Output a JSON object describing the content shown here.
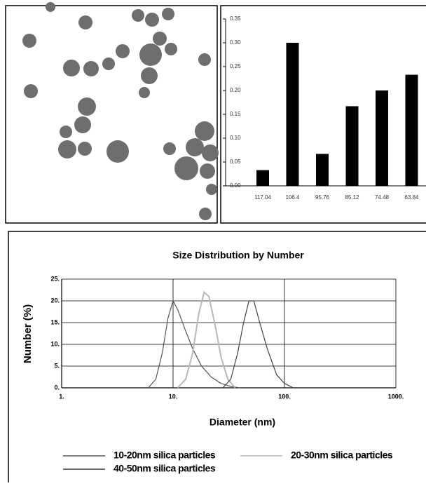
{
  "chart_data": [
    {
      "type": "bar",
      "categories": [
        "117.04",
        "106.4",
        "95.76",
        "85.12",
        "74.48",
        "63.84"
      ],
      "values": [
        0.033,
        0.3,
        0.067,
        0.167,
        0.2,
        0.233
      ],
      "color": "#000000",
      "ylim": [
        0,
        0.35
      ],
      "yticks": [
        {
          "value": 0,
          "label": "0.00"
        },
        0.05,
        {
          "value": 0.1,
          "label": "0.10"
        },
        0.15,
        {
          "value": 0.2,
          "label": "0.20"
        },
        0.25,
        {
          "value": 0.3,
          "label": "0.30"
        },
        0.35
      ]
    },
    {
      "type": "line",
      "title": "Size Distribution by Number",
      "x_label": "Diameter (nm)",
      "y_label": "Number (%)",
      "xscale": "log",
      "grid": true,
      "xlim": [
        1,
        1000
      ],
      "xticks": [
        {
          "value": 1,
          "label": "1."
        },
        {
          "value": 10,
          "label": "10."
        },
        {
          "value": 100,
          "label": "100."
        },
        {
          "value": 1000,
          "label": "1000."
        }
      ],
      "ylim": [
        0,
        25
      ],
      "yticks": [
        {
          "value": 0,
          "label": "0."
        },
        {
          "value": 5,
          "label": "5."
        },
        {
          "value": 10,
          "label": "10."
        },
        {
          "value": 15,
          "label": "15."
        },
        {
          "value": 20,
          "label": "20."
        },
        {
          "value": 25,
          "label": "25."
        }
      ],
      "series": [
        {
          "name": "10-20nm silica particles",
          "color": "#555555",
          "x": [
            6,
            7,
            8,
            9,
            10,
            11,
            13,
            15,
            18,
            22,
            27,
            33,
            40
          ],
          "values": [
            0,
            2,
            8,
            16,
            20,
            18,
            13,
            9,
            5,
            2.5,
            1,
            0.3,
            0
          ]
        },
        {
          "name": "20-30nm silica particles",
          "color": "#b8b8b8",
          "x": [
            11,
            13,
            15,
            17,
            19,
            21,
            24,
            27,
            31,
            36
          ],
          "values": [
            0,
            2,
            8,
            17,
            22,
            21,
            14,
            7,
            2,
            0
          ]
        },
        {
          "name": "40-50nm silica particles",
          "color": "#404040",
          "x": [
            28,
            33,
            38,
            43,
            48,
            53,
            60,
            70,
            85,
            100,
            120
          ],
          "values": [
            0,
            2,
            8,
            15,
            20,
            20,
            15,
            9,
            3,
            1,
            0
          ]
        }
      ]
    }
  ]
}
